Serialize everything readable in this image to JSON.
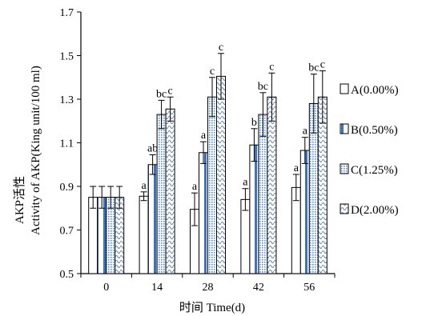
{
  "chart_data": {
    "type": "bar",
    "xlabel": "时间 Time(d)",
    "ylabel_line1": "AKP活性",
    "ylabel_line2": "Activity of AKP(King unit/100 ml)",
    "ylim": [
      0.5,
      1.7
    ],
    "yticks": [
      "0.5",
      "0.7",
      "0.9",
      "1.1",
      "1.3",
      "1.5",
      "1.7"
    ],
    "ytick_values": [
      0.5,
      0.7,
      0.9,
      1.1,
      1.3,
      1.5,
      1.7
    ],
    "categories": [
      "0",
      "14",
      "28",
      "42",
      "56"
    ],
    "legend_position": "right",
    "grid": false,
    "series": [
      {
        "name": "A(0.00%)",
        "pattern": "blank",
        "values": [
          0.85,
          0.855,
          0.795,
          0.84,
          0.895
        ],
        "errors": [
          0.05,
          0.02,
          0.075,
          0.05,
          0.06
        ],
        "labels": [
          "",
          "a",
          "a",
          "a",
          "a"
        ]
      },
      {
        "name": "B(0.50%)",
        "pattern": "blue-stripe",
        "values": [
          0.85,
          1.0,
          1.055,
          1.09,
          1.065
        ],
        "errors": [
          0.05,
          0.045,
          0.05,
          0.075,
          0.06
        ],
        "labels": [
          "",
          "ab",
          "a",
          "b",
          "a"
        ]
      },
      {
        "name": "C(1.25%)",
        "pattern": "blue-dots",
        "values": [
          0.85,
          1.23,
          1.31,
          1.23,
          1.28
        ],
        "errors": [
          0.05,
          0.065,
          0.09,
          0.1,
          0.135
        ],
        "labels": [
          "",
          "bc",
          "c",
          "bc",
          "bc"
        ]
      },
      {
        "name": "D(2.00%)",
        "pattern": "wave",
        "values": [
          0.85,
          1.255,
          1.405,
          1.31,
          1.31
        ],
        "errors": [
          0.05,
          0.055,
          0.105,
          0.11,
          0.12
        ],
        "labels": [
          "",
          "c",
          "c",
          "c",
          "c"
        ]
      }
    ],
    "colors": {
      "blue_stripe": "#3b73c4",
      "blue_dots": "#5b8fd6",
      "wave": "#6d8fb8",
      "axis": "#000000"
    }
  }
}
